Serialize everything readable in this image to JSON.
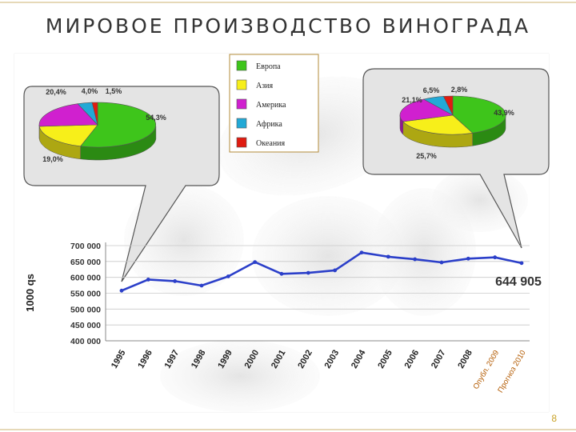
{
  "slide": {
    "title": "МИРОВОЕ ПРОИЗВОДСТВО ВИНОГРАДА",
    "page_number": "8"
  },
  "legend": [
    {
      "label": "Европа",
      "color": "#3ec51b"
    },
    {
      "label": "Азия",
      "color": "#f7ef1a"
    },
    {
      "label": "Америка",
      "color": "#d020cf"
    },
    {
      "label": "Африка",
      "color": "#22a9d6"
    },
    {
      "label": "Океания",
      "color": "#e01b10"
    }
  ],
  "chart_data": [
    {
      "type": "pie",
      "slices": [
        {
          "label": "Европа",
          "value": 54.3,
          "text": "54,3%"
        },
        {
          "label": "Азия",
          "value": 19.0,
          "text": "19,0%"
        },
        {
          "label": "Америка",
          "value": 20.4,
          "text": "20,4%"
        },
        {
          "label": "Африка",
          "value": 4.0,
          "text": "4,0%"
        },
        {
          "label": "Океания",
          "value": 1.5,
          "text": "1,5%"
        }
      ]
    },
    {
      "type": "pie",
      "slices": [
        {
          "label": "Европа",
          "value": 43.9,
          "text": "43,9%"
        },
        {
          "label": "Азия",
          "value": 25.7,
          "text": "25,7%"
        },
        {
          "label": "Америка",
          "value": 21.1,
          "text": "21,1%"
        },
        {
          "label": "Африка",
          "value": 6.5,
          "text": "6,5%"
        },
        {
          "label": "Океания",
          "value": 2.8,
          "text": "2,8%"
        }
      ]
    },
    {
      "type": "line",
      "ylabel": "1000 qs",
      "ylim": [
        400000,
        700000
      ],
      "yticks": [
        "700 000",
        "650 000",
        "600 000",
        "550 000",
        "500 000",
        "450 000",
        "400 000"
      ],
      "ytick_values": [
        700000,
        650000,
        600000,
        550000,
        500000,
        450000,
        400000
      ],
      "categories": [
        "1995",
        "1996",
        "1997",
        "1998",
        "1999",
        "2000",
        "2001",
        "2002",
        "2003",
        "2004",
        "2005",
        "2006",
        "2007",
        "2008",
        "Опубл. 2009",
        "Прогноз 2010"
      ],
      "values": [
        558000,
        593000,
        588000,
        574000,
        603000,
        648000,
        611000,
        614000,
        622000,
        678000,
        665000,
        657000,
        647000,
        659000,
        663000,
        644905
      ],
      "annotation": "644 905",
      "grid": true,
      "color": "#2b3fc9"
    }
  ]
}
